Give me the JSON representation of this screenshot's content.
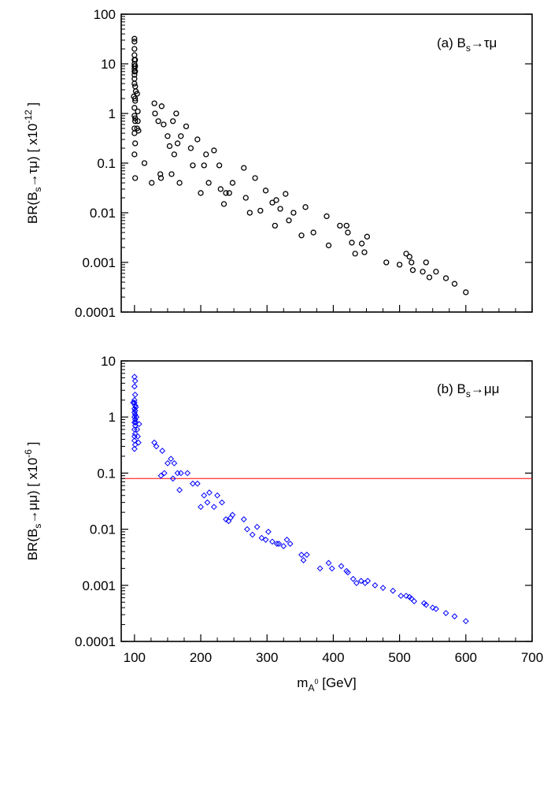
{
  "chart_data": [
    {
      "id": "panel-a",
      "type": "scatter",
      "title": {
        "prefix": "(a) B",
        "sub": "s",
        "suffix": "→τμ"
      },
      "ylabel": {
        "pre": "BR(B",
        "sub": "s",
        "post": "→τμ)  [ x10",
        "sup": "-12",
        "end": " ]"
      },
      "xlabel": "",
      "x_scale": "linear",
      "y_scale": "log",
      "xlim": [
        80,
        700
      ],
      "ylim": [
        0.0001,
        100
      ],
      "x_ticks": [
        100,
        200,
        300,
        400,
        500,
        600,
        700
      ],
      "x_tick_labels_shown": false,
      "y_ticks": [
        0.0001,
        0.001,
        0.01,
        0.1,
        1,
        10,
        100
      ],
      "y_tick_labels": [
        "0.0001",
        "0.001",
        "0.01",
        "0.1",
        "1",
        "10",
        "100"
      ],
      "grid": false,
      "marker": "circle",
      "color": "#000000",
      "points": [
        [
          100,
          32
        ],
        [
          100,
          28
        ],
        [
          100,
          20
        ],
        [
          100,
          15
        ],
        [
          100,
          12
        ],
        [
          100,
          10
        ],
        [
          100,
          9
        ],
        [
          100,
          8
        ],
        [
          100,
          7
        ],
        [
          100,
          6
        ],
        [
          100,
          5
        ],
        [
          100,
          4
        ],
        [
          101,
          12
        ],
        [
          101,
          9
        ],
        [
          101,
          7
        ],
        [
          101,
          3.5
        ],
        [
          101,
          0.8
        ],
        [
          99,
          2.2
        ],
        [
          101,
          2
        ],
        [
          102,
          2.8
        ],
        [
          101,
          1.8
        ],
        [
          100,
          1.3
        ],
        [
          100,
          0.9
        ],
        [
          101,
          0.7
        ],
        [
          100,
          0.5
        ],
        [
          100,
          0.4
        ],
        [
          101,
          0.25
        ],
        [
          100,
          0.15
        ],
        [
          101,
          0.05
        ],
        [
          104,
          2.5
        ],
        [
          105,
          1.1
        ],
        [
          104,
          0.5
        ],
        [
          105,
          0.7
        ],
        [
          106,
          0.45
        ],
        [
          115,
          0.1
        ],
        [
          126,
          0.04
        ],
        [
          130,
          1.6
        ],
        [
          131,
          1.0
        ],
        [
          136,
          0.7
        ],
        [
          139,
          0.06
        ],
        [
          140,
          0.05
        ],
        [
          141,
          1.4
        ],
        [
          144,
          0.6
        ],
        [
          150,
          0.35
        ],
        [
          153,
          0.22
        ],
        [
          156,
          0.06
        ],
        [
          158,
          0.7
        ],
        [
          160,
          0.15
        ],
        [
          163,
          1.0
        ],
        [
          165,
          0.25
        ],
        [
          168,
          0.04
        ],
        [
          170,
          0.35
        ],
        [
          178,
          0.55
        ],
        [
          185,
          0.2
        ],
        [
          188,
          0.09
        ],
        [
          195,
          0.3
        ],
        [
          200,
          0.025
        ],
        [
          205,
          0.09
        ],
        [
          208,
          0.15
        ],
        [
          212,
          0.04
        ],
        [
          220,
          0.18
        ],
        [
          228,
          0.09
        ],
        [
          230,
          0.03
        ],
        [
          235,
          0.015
        ],
        [
          238,
          0.025
        ],
        [
          243,
          0.025
        ],
        [
          248,
          0.04
        ],
        [
          265,
          0.08
        ],
        [
          268,
          0.02
        ],
        [
          274,
          0.01
        ],
        [
          282,
          0.05
        ],
        [
          290,
          0.011
        ],
        [
          298,
          0.028
        ],
        [
          308,
          0.016
        ],
        [
          312,
          0.0055
        ],
        [
          314,
          0.018
        ],
        [
          320,
          0.012
        ],
        [
          328,
          0.024
        ],
        [
          333,
          0.007
        ],
        [
          340,
          0.01
        ],
        [
          352,
          0.0035
        ],
        [
          358,
          0.013
        ],
        [
          370,
          0.004
        ],
        [
          390,
          0.0085
        ],
        [
          393,
          0.0022
        ],
        [
          410,
          0.0055
        ],
        [
          420,
          0.0055
        ],
        [
          422,
          0.004
        ],
        [
          428,
          0.0025
        ],
        [
          433,
          0.0015
        ],
        [
          443,
          0.0024
        ],
        [
          447,
          0.0016
        ],
        [
          451,
          0.0033
        ],
        [
          480,
          0.001
        ],
        [
          500,
          0.0009
        ],
        [
          510,
          0.0015
        ],
        [
          515,
          0.0013
        ],
        [
          518,
          0.001
        ],
        [
          520,
          0.0007
        ],
        [
          535,
          0.00065
        ],
        [
          540,
          0.001
        ],
        [
          545,
          0.0005
        ],
        [
          555,
          0.00065
        ],
        [
          570,
          0.00048
        ],
        [
          583,
          0.00037
        ],
        [
          600,
          0.00025
        ]
      ]
    },
    {
      "id": "panel-b",
      "type": "scatter",
      "title": {
        "prefix": "(b) B",
        "sub": "s",
        "suffix": "→μμ"
      },
      "ylabel": {
        "pre": "BR(B",
        "sub": "s",
        "post": "→μμ)  [ x10",
        "sup": "-6",
        "end": " ]"
      },
      "xlabel": {
        "pre": "m",
        "sub": "A",
        "subsup": "0",
        "post": " [GeV]"
      },
      "x_scale": "linear",
      "y_scale": "log",
      "xlim": [
        80,
        700
      ],
      "ylim": [
        0.0001,
        10
      ],
      "x_ticks": [
        100,
        200,
        300,
        400,
        500,
        600,
        700
      ],
      "x_tick_labels": [
        "100",
        "200",
        "300",
        "400",
        "500",
        "600",
        "700"
      ],
      "y_ticks": [
        0.0001,
        0.001,
        0.01,
        0.1,
        1,
        10
      ],
      "y_tick_labels": [
        "0.0001",
        "0.001",
        "0.01",
        "0.1",
        "1",
        "10"
      ],
      "grid": false,
      "marker": "diamond",
      "color": "#0000ff",
      "reference_line": {
        "y": 0.08,
        "color": "#ff0000"
      },
      "points": [
        [
          100,
          5.2
        ],
        [
          101,
          4.4
        ],
        [
          100,
          3.5
        ],
        [
          101,
          2.5
        ],
        [
          100,
          2.0
        ],
        [
          100,
          1.8
        ],
        [
          101,
          1.6
        ],
        [
          100,
          1.4
        ],
        [
          101,
          1.3
        ],
        [
          100,
          1.2
        ],
        [
          101,
          1.1
        ],
        [
          100,
          1.0
        ],
        [
          101,
          0.9
        ],
        [
          100,
          0.8
        ],
        [
          101,
          0.7
        ],
        [
          100,
          0.6
        ],
        [
          101,
          0.5
        ],
        [
          100,
          0.45
        ],
        [
          100,
          0.38
        ],
        [
          101,
          0.32
        ],
        [
          100,
          0.27
        ],
        [
          98,
          1.8
        ],
        [
          102,
          1.5
        ],
        [
          103,
          1.0
        ],
        [
          104,
          0.6
        ],
        [
          105,
          0.45
        ],
        [
          106,
          0.35
        ],
        [
          107,
          0.75
        ],
        [
          102,
          0.8
        ],
        [
          130,
          0.35
        ],
        [
          133,
          0.3
        ],
        [
          140,
          0.09
        ],
        [
          142,
          0.25
        ],
        [
          145,
          0.1
        ],
        [
          150,
          0.15
        ],
        [
          155,
          0.18
        ],
        [
          158,
          0.08
        ],
        [
          160,
          0.15
        ],
        [
          165,
          0.1
        ],
        [
          168,
          0.05
        ],
        [
          170,
          0.1
        ],
        [
          180,
          0.1
        ],
        [
          188,
          0.065
        ],
        [
          195,
          0.065
        ],
        [
          200,
          0.025
        ],
        [
          205,
          0.04
        ],
        [
          210,
          0.03
        ],
        [
          213,
          0.045
        ],
        [
          220,
          0.025
        ],
        [
          225,
          0.04
        ],
        [
          232,
          0.03
        ],
        [
          238,
          0.015
        ],
        [
          242,
          0.014
        ],
        [
          245,
          0.016
        ],
        [
          248,
          0.018
        ],
        [
          265,
          0.015
        ],
        [
          270,
          0.01
        ],
        [
          278,
          0.008
        ],
        [
          285,
          0.011
        ],
        [
          292,
          0.007
        ],
        [
          298,
          0.0065
        ],
        [
          302,
          0.009
        ],
        [
          308,
          0.006
        ],
        [
          315,
          0.0055
        ],
        [
          318,
          0.0055
        ],
        [
          325,
          0.005
        ],
        [
          330,
          0.0065
        ],
        [
          335,
          0.0055
        ],
        [
          352,
          0.0035
        ],
        [
          355,
          0.0028
        ],
        [
          360,
          0.0035
        ],
        [
          380,
          0.002
        ],
        [
          393,
          0.0025
        ],
        [
          398,
          0.002
        ],
        [
          412,
          0.0022
        ],
        [
          420,
          0.0018
        ],
        [
          422,
          0.0017
        ],
        [
          430,
          0.0013
        ],
        [
          435,
          0.0011
        ],
        [
          442,
          0.0012
        ],
        [
          448,
          0.0011
        ],
        [
          452,
          0.0012
        ],
        [
          463,
          0.001
        ],
        [
          475,
          0.0009
        ],
        [
          490,
          0.0008
        ],
        [
          502,
          0.00065
        ],
        [
          510,
          0.00065
        ],
        [
          515,
          0.00062
        ],
        [
          518,
          0.00058
        ],
        [
          522,
          0.00052
        ],
        [
          537,
          0.00048
        ],
        [
          540,
          0.00045
        ],
        [
          550,
          0.0004
        ],
        [
          555,
          0.00038
        ],
        [
          570,
          0.00032
        ],
        [
          583,
          0.00028
        ],
        [
          600,
          0.00023
        ]
      ]
    }
  ]
}
